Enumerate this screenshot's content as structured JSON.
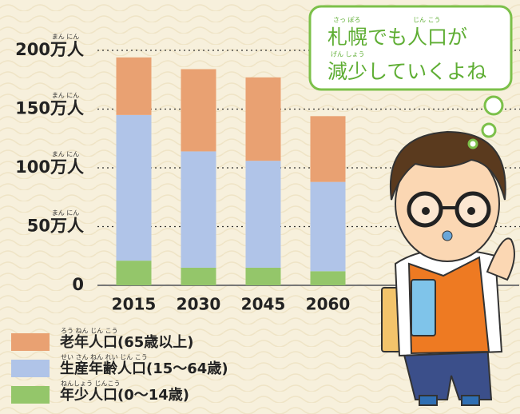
{
  "chart_data": {
    "type": "bar",
    "stacked": true,
    "categories": [
      "2015",
      "2030",
      "2045",
      "2060"
    ],
    "series": [
      {
        "name": "年少人口(0〜14歳)",
        "ruby": "ねんしょう じんこう",
        "color": "#94c66a",
        "values": [
          21,
          15,
          15,
          12
        ]
      },
      {
        "name": "生産年齢人口(15〜64歳)",
        "ruby": "せい さん ねん れい じん こう",
        "color": "#b0c4e8",
        "values": [
          124,
          99,
          91,
          76
        ]
      },
      {
        "name": "老年人口(65歳以上)",
        "ruby": "ろう ねん じん こう",
        "color": "#e9a172",
        "values": [
          49,
          70,
          71,
          56
        ]
      }
    ],
    "ylim": [
      0,
      200
    ],
    "yticks": [
      0,
      {
        "value": 50,
        "label": "50万人"
      },
      {
        "value": 100,
        "label": "100万人"
      },
      {
        "value": 150,
        "label": "150万人"
      },
      {
        "value": 200,
        "label": "200万人"
      }
    ],
    "ytick_ruby": "まん にん",
    "grid": true
  },
  "annotation": {
    "lines": [
      "札幌でも人口が",
      "減少していくよね"
    ],
    "ruby": [
      "さっ ぽろ",
      "じん こう",
      "げん しょう"
    ]
  }
}
